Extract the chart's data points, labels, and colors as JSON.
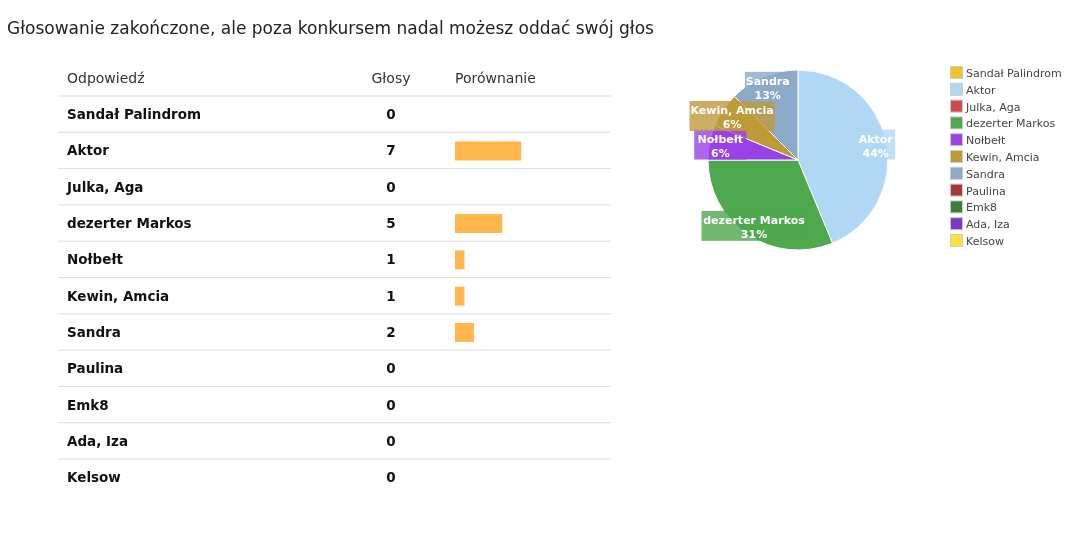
{
  "chart_data": [
    {
      "type": "bar",
      "orientation": "horizontal",
      "title": "Głosowanie zakończone, ale poza konkursem nadal możesz oddać swój głos",
      "ylabel": "Odpowiedź",
      "xlabel": "Porównanie",
      "annotations": [
        "Głosy"
      ],
      "categories": [
        "Sandał Palindrom",
        "Aktor",
        "Julka, Aga",
        "dezerter Markos",
        "Nołbełt",
        "Kewin, Amcia",
        "Sandra",
        "Paulina",
        "Emk8",
        "Ada, Iza",
        "Kelsow"
      ],
      "values": [
        0,
        7,
        0,
        5,
        1,
        1,
        2,
        0,
        0,
        0,
        0
      ],
      "color": "#ffb74d",
      "xlim": [
        0,
        16.5
      ],
      "data_labels": true,
      "grid": "y"
    },
    {
      "type": "pie",
      "categories": [
        "Sandał Palindrom",
        "Aktor",
        "Julka, Aga",
        "dezerter Markos",
        "Nołbełt",
        "Kewin, Amcia",
        "Sandra",
        "Paulina",
        "Emk8",
        "Ada, Iza",
        "Kelsow"
      ],
      "values": [
        0,
        43.75,
        0,
        31.25,
        6.25,
        6.25,
        12.5,
        0,
        0,
        0,
        0
      ],
      "value_labels": [
        null,
        "44%",
        null,
        "31%",
        "6%",
        "6%",
        "13%",
        null,
        null,
        null,
        null
      ],
      "colors": [
        "#f0c030",
        "#b0d8f5",
        "#d04848",
        "#4ea84e",
        "#9a40e8",
        "#c09a38",
        "#8aaac8",
        "#a83838",
        "#3a803a",
        "#7a38c0",
        "#ffe040"
      ],
      "legend": "right"
    }
  ]
}
